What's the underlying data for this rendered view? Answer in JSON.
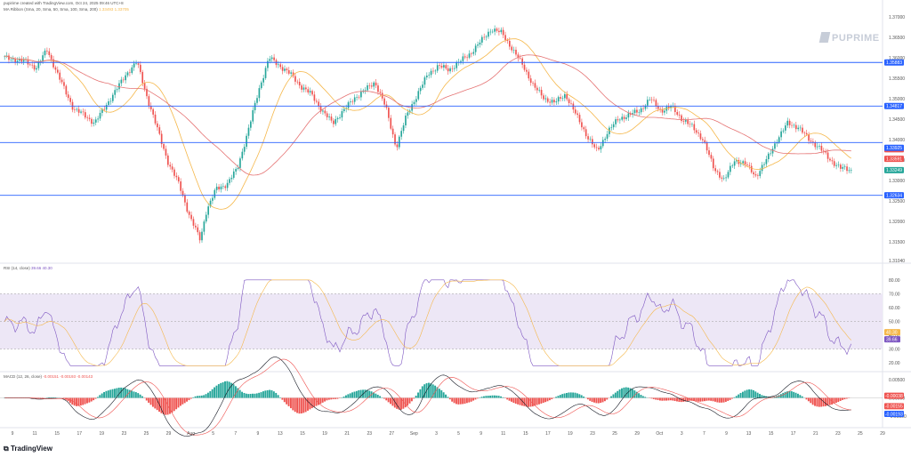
{
  "header": {
    "caption": "pupirime created with TradingView.com, Oct 24, 2025 09:46 UTC+8",
    "ma_label": "MA Ribbon (Sma, 20, Sma, 50, Sma, 100, Sma, 200)",
    "ma_values": "1.33493  1.33705"
  },
  "watermark": {
    "text": "PUPRIME"
  },
  "footer": {
    "logo_text": "TradingView"
  },
  "colors": {
    "up": "#26a69a",
    "down": "#ef5350",
    "ma_fast": "#f5b74a",
    "ma_slow": "#e57373",
    "hline": "#2962ff",
    "rsi": "#7e57c2",
    "rsi_band": "#ede7f6",
    "macd": "#131722",
    "signal": "#ef5350"
  },
  "chart_data": [
    {
      "type": "candlestick",
      "title": "",
      "ylim": [
        1.3104,
        1.3728
      ],
      "price_ticks": [
        "1.37000",
        "1.36500",
        "1.36000",
        "1.35500",
        "1.35000",
        "1.34500",
        "1.34000",
        "1.33500",
        "1.33000",
        "1.32500",
        "1.32000",
        "1.31500",
        "1.31040"
      ],
      "x_ticks": [
        "9",
        "11",
        "15",
        "17",
        "19",
        "23",
        "25",
        "29",
        "Aug",
        "5",
        "7",
        "9",
        "13",
        "15",
        "19",
        "21",
        "23",
        "27",
        "Sep",
        "3",
        "5",
        "9",
        "11",
        "15",
        "17",
        "19",
        "23",
        "25",
        "29",
        "Oct",
        "3",
        "7",
        "9",
        "13",
        "15",
        "17",
        "21",
        "23",
        "25",
        "29"
      ],
      "horizontal_lines": [
        1.35883,
        1.34817,
        1.33925,
        1.32634
      ],
      "price_labels": [
        {
          "text": "1.35883",
          "value": 1.35883,
          "color": "#2962ff"
        },
        {
          "text": "1.34817",
          "value": 1.34817,
          "color": "#2962ff"
        },
        {
          "text": "1.33760",
          "value": 1.3376,
          "color": "#ef5350"
        },
        {
          "text": "1.33591",
          "value": 1.33591,
          "color": "#ef5350"
        },
        {
          "text": "1.33925",
          "value": 1.33925,
          "color": "#2962ff"
        },
        {
          "text": "1.33249",
          "value": 1.33249,
          "color": "#26a69a"
        },
        {
          "text": "1.32634",
          "value": 1.32634,
          "color": "#2962ff"
        }
      ],
      "close_path": [
        [
          0,
          1.36
        ],
        [
          4,
          1.359
        ],
        [
          6,
          1.3575
        ],
        [
          8,
          1.362
        ],
        [
          10,
          1.356
        ],
        [
          13,
          1.3475
        ],
        [
          15,
          1.346
        ],
        [
          17,
          1.344
        ],
        [
          19,
          1.348
        ],
        [
          21,
          1.352
        ],
        [
          23,
          1.356
        ],
        [
          25,
          1.359
        ],
        [
          27,
          1.35
        ],
        [
          29,
          1.342
        ],
        [
          31,
          1.334
        ],
        [
          33,
          1.329
        ],
        [
          35,
          1.321
        ],
        [
          37,
          1.3155
        ],
        [
          38,
          1.322
        ],
        [
          40,
          1.328
        ],
        [
          42,
          1.329
        ],
        [
          44,
          1.333
        ],
        [
          46,
          1.342
        ],
        [
          48,
          1.352
        ],
        [
          50,
          1.36
        ],
        [
          52,
          1.358
        ],
        [
          54,
          1.356
        ],
        [
          56,
          1.353
        ],
        [
          58,
          1.351
        ],
        [
          60,
          1.347
        ],
        [
          62,
          1.344
        ],
        [
          64,
          1.347
        ],
        [
          66,
          1.35
        ],
        [
          68,
          1.352
        ],
        [
          70,
          1.354
        ],
        [
          72,
          1.348
        ],
        [
          74,
          1.338
        ],
        [
          76,
          1.346
        ],
        [
          78,
          1.351
        ],
        [
          80,
          1.356
        ],
        [
          82,
          1.358
        ],
        [
          84,
          1.357
        ],
        [
          86,
          1.359
        ],
        [
          88,
          1.361
        ],
        [
          90,
          1.364
        ],
        [
          92,
          1.367
        ],
        [
          94,
          1.366
        ],
        [
          96,
          1.362
        ],
        [
          98,
          1.358
        ],
        [
          100,
          1.353
        ],
        [
          102,
          1.35
        ],
        [
          104,
          1.349
        ],
        [
          106,
          1.351
        ],
        [
          108,
          1.346
        ],
        [
          110,
          1.341
        ],
        [
          112,
          1.337
        ],
        [
          114,
          1.342
        ],
        [
          116,
          1.345
        ],
        [
          118,
          1.346
        ],
        [
          120,
          1.347
        ],
        [
          122,
          1.35
        ],
        [
          124,
          1.347
        ],
        [
          126,
          1.348
        ],
        [
          128,
          1.345
        ],
        [
          130,
          1.343
        ],
        [
          132,
          1.34
        ],
        [
          134,
          1.333
        ],
        [
          136,
          1.33
        ],
        [
          138,
          1.335
        ],
        [
          140,
          1.334
        ],
        [
          142,
          1.331
        ],
        [
          144,
          1.335
        ],
        [
          146,
          1.34
        ],
        [
          148,
          1.344
        ],
        [
          150,
          1.343
        ],
        [
          152,
          1.34
        ],
        [
          154,
          1.338
        ],
        [
          156,
          1.335
        ],
        [
          158,
          1.333
        ],
        [
          160,
          1.3325
        ]
      ]
    },
    {
      "type": "line",
      "title": "",
      "label": "RSI (14, close)",
      "label_values": "39.66  40.30",
      "ylim": [
        15,
        85
      ],
      "ticks": [
        "80.00",
        "70.00",
        "60.00",
        "50.00",
        "40.00",
        "30.00",
        "20.00"
      ],
      "band": [
        30,
        70
      ],
      "current_labels": [
        {
          "text": "40.30",
          "value": 40.3,
          "color": "#f5b74a"
        },
        {
          "text": "39.66",
          "value": 39.66,
          "color": "#7e57c2"
        }
      ]
    },
    {
      "type": "bar",
      "title": "",
      "label": "MACD (12, 26, close)",
      "label_values": "-0.00151  -0.00193  -0.00143",
      "ylim": [
        -0.0064,
        0.0064
      ],
      "ticks": [
        "0.00500",
        "0.00000",
        "-0.00500"
      ],
      "current_labels": [
        {
          "text": "-0.00038",
          "value": -0.00038,
          "color": "#ef5350"
        },
        {
          "text": "-0.00155",
          "value": -0.00155,
          "color": "#ef5350"
        },
        {
          "text": "-0.00193",
          "value": -0.00193,
          "color": "#2962ff"
        }
      ]
    }
  ]
}
